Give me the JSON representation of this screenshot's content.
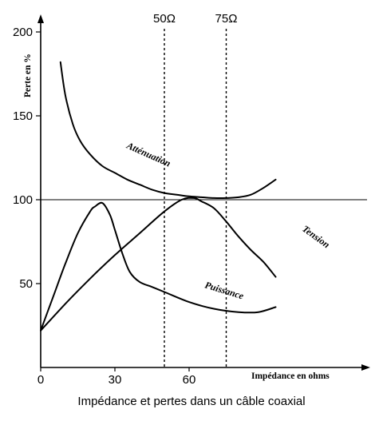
{
  "chart_data": {
    "type": "line",
    "title": "",
    "caption": "Impédance et pertes dans un câble coaxial",
    "xlabel": "Impédance en ohms",
    "ylabel": "Perte en %",
    "xlim": [
      0,
      95
    ],
    "ylim": [
      0,
      200
    ],
    "xticks": [
      0,
      30,
      60
    ],
    "xtick_labels": [
      "0",
      "30",
      "60"
    ],
    "yticks": [
      50,
      100,
      150,
      200
    ],
    "ytick_labels": [
      "50",
      "100",
      "150",
      "200"
    ],
    "grid": false,
    "legend": "none",
    "reference_lines": [
      {
        "orientation": "horizontal",
        "value": 100,
        "style": "solid",
        "label": ""
      },
      {
        "orientation": "vertical",
        "value": 50,
        "style": "dotted",
        "label": "50Ω"
      },
      {
        "orientation": "vertical",
        "value": 75,
        "style": "dotted",
        "label": "75Ω"
      }
    ],
    "series": [
      {
        "name": "Atténuation",
        "x": [
          8,
          10,
          13,
          16,
          20,
          25,
          30,
          35,
          40,
          45,
          50,
          55,
          60,
          65,
          70,
          75,
          80,
          85,
          90,
          95
        ],
        "y": [
          182,
          162,
          145,
          135,
          127,
          120,
          116,
          112,
          109,
          106,
          104,
          103,
          102,
          101.5,
          101,
          101,
          101.5,
          103,
          107,
          112
        ]
      },
      {
        "name": "Tension",
        "x": [
          0,
          10,
          20,
          30,
          40,
          50,
          57,
          62,
          65,
          70,
          75,
          80,
          85,
          90,
          95
        ],
        "y": [
          22,
          38,
          53,
          67,
          80,
          93,
          100,
          101,
          99,
          95,
          87,
          78,
          70,
          63,
          54
        ]
      },
      {
        "name": "Puissance",
        "x": [
          0,
          5,
          10,
          15,
          20,
          22,
          25,
          28,
          30,
          33,
          36,
          40,
          45,
          50,
          60,
          70,
          80,
          88,
          95
        ],
        "y": [
          22,
          42,
          62,
          80,
          93,
          96,
          98,
          91,
          82,
          68,
          57,
          51,
          48,
          45,
          39,
          35,
          33,
          33,
          36
        ]
      }
    ]
  }
}
